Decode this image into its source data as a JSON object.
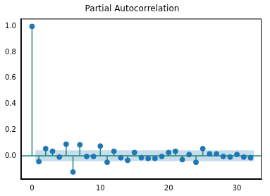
{
  "chart_data": {
    "type": "stem",
    "title": "Partial Autocorrelation",
    "x": [
      0,
      1,
      2,
      3,
      4,
      5,
      6,
      7,
      8,
      9,
      10,
      11,
      12,
      13,
      14,
      15,
      16,
      17,
      18,
      19,
      20,
      21,
      22,
      23,
      24,
      25,
      26,
      27,
      28,
      29,
      30,
      31,
      32
    ],
    "values": [
      1.0,
      -0.045,
      0.055,
      0.035,
      -0.01,
      0.09,
      -0.125,
      0.085,
      -0.005,
      -0.005,
      0.075,
      -0.05,
      0.035,
      -0.015,
      -0.035,
      0.025,
      -0.015,
      -0.02,
      -0.02,
      -0.005,
      0.025,
      0.035,
      -0.03,
      0.01,
      -0.05,
      0.055,
      0.015,
      0.015,
      -0.005,
      -0.01,
      0.01,
      -0.01,
      -0.015
    ],
    "confidence_interval": 0.042,
    "color": "#1f77b4",
    "marker": "circle",
    "xlim": [
      -1.6,
      33.6
    ],
    "ylim": [
      -0.18,
      1.06
    ],
    "xticks": [
      0,
      10,
      20,
      30
    ],
    "yticks": [
      {
        "value": 0,
        "label": "0.0"
      },
      {
        "value": 0.2,
        "label": "0.2"
      },
      {
        "value": 0.4,
        "label": "0.4"
      },
      {
        "value": 0.6,
        "label": "0.6"
      },
      {
        "value": 0.8,
        "label": "0.8"
      },
      {
        "value": 1,
        "label": "1.0"
      }
    ],
    "grid": false
  }
}
